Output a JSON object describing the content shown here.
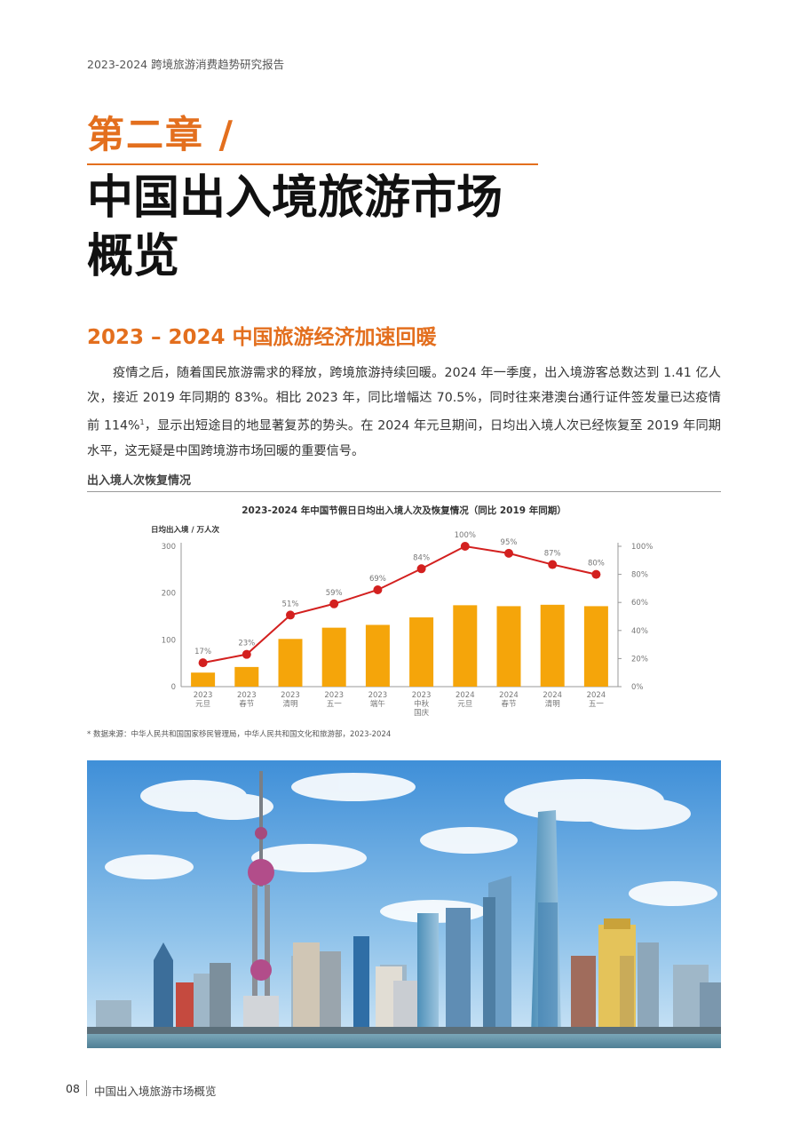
{
  "header": {
    "report_title": "2023-2024 跨境旅游消费趋势研究报告"
  },
  "chapter": {
    "label": "第二章 /",
    "title_line1": "中国出入境旅游市场",
    "title_line2": "概览"
  },
  "section": {
    "heading": "2023 – 2024 中国旅游经济加速回暖",
    "paragraph_part1": "疫情之后，随着国民旅游需求的释放，跨境旅游持续回暖。2024 年一季度，出入境游客总数达到 1.41 亿人次，接近 2019 年同期的 83%。相比 2023 年，同比增幅达 70.5%，同时往来港澳台通行证件签发量已达疫情前 114%",
    "footnote_marker": "1",
    "paragraph_part2": "，显示出短途目的地显著复苏的势头。在 2024 年元旦期间，日均出入境人次已经恢复至 2019 年同期水平，这无疑是中国跨境游市场回暖的重要信号。"
  },
  "chart_section": {
    "heading": "出入境人次恢复情况",
    "source_note": "* 数据来源：中华人民共和国国家移民管理局，中华人民共和国文化和旅游部，2023-2024"
  },
  "chart_data": {
    "type": "bar",
    "title": "2023-2024 年中国节假日日均出入境人次及恢复情况（同比 2019 年同期）",
    "ylabel": "日均出入境 / 万人次",
    "ylim": [
      0,
      300
    ],
    "y_ticks": [
      "300",
      "200",
      "100",
      "0"
    ],
    "y2lim": [
      0,
      100
    ],
    "y2_ticks": [
      "100%",
      "80%",
      "60%",
      "40%",
      "20%",
      "0%"
    ],
    "categories": [
      [
        "2023",
        "元旦"
      ],
      [
        "2023",
        "春节"
      ],
      [
        "2023",
        "清明"
      ],
      [
        "2023",
        "五一"
      ],
      [
        "2023",
        "端午"
      ],
      [
        "2023",
        "中秋",
        "国庆"
      ],
      [
        "2024",
        "元旦"
      ],
      [
        "2024",
        "春节"
      ],
      [
        "2024",
        "清明"
      ],
      [
        "2024",
        "五一"
      ]
    ],
    "series": [
      {
        "type": "bar",
        "values": [
          30,
          42,
          102,
          126,
          132,
          148,
          174,
          172,
          175,
          172
        ],
        "color": "#f5a50a"
      },
      {
        "type": "line",
        "values": [
          17,
          23,
          51,
          59,
          69,
          84,
          100,
          95,
          87,
          80
        ],
        "labels": [
          "17%",
          "23%",
          "51%",
          "59%",
          "69%",
          "84%",
          "100%",
          "95%",
          "87%",
          "80%"
        ],
        "color": "#d3201f"
      }
    ]
  },
  "footer": {
    "page_number": "08",
    "section_title": "中国出入境旅游市场概览"
  }
}
